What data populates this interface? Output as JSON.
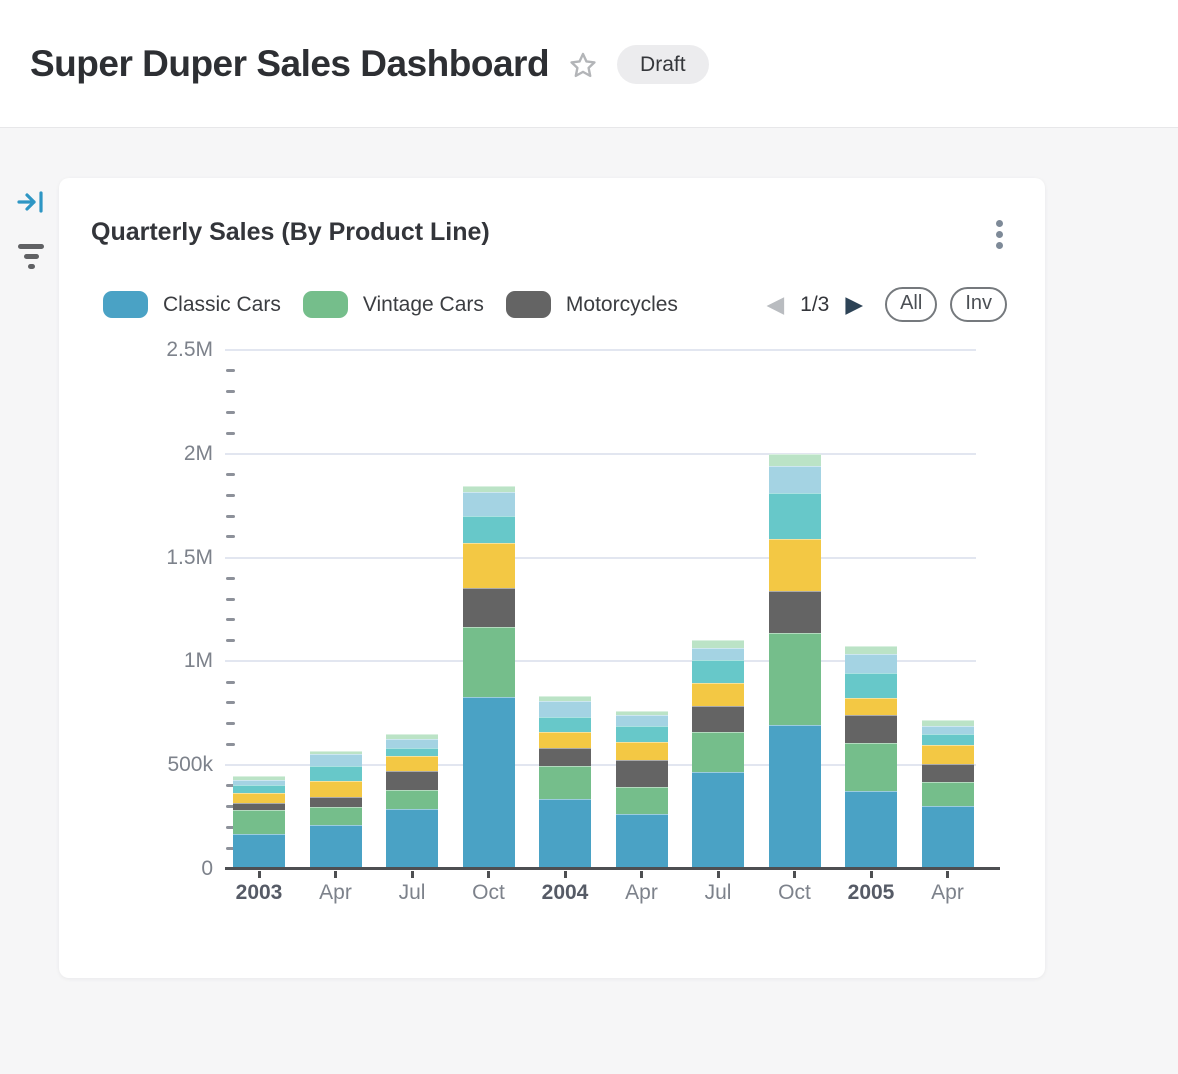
{
  "header": {
    "title": "Super Duper Sales Dashboard",
    "status_badge": "Draft"
  },
  "card": {
    "title": "Quarterly Sales (By Product Line)",
    "legend": {
      "items": [
        {
          "label": "Classic Cars",
          "color": "#4AA2C5"
        },
        {
          "label": "Vintage Cars",
          "color": "#75BE8B"
        },
        {
          "label": "Motorcycles",
          "color": "#646464"
        }
      ],
      "page": "1/3",
      "prev_disabled": true,
      "next_disabled": false,
      "all_label": "All",
      "inv_label": "Inv"
    }
  },
  "chart_data": {
    "type": "bar",
    "stacked": true,
    "title": "Quarterly Sales (By Product Line)",
    "categories": [
      "2003",
      "Apr",
      "Jul",
      "Oct",
      "2004",
      "Apr",
      "Jul",
      "Oct",
      "2005",
      "Apr"
    ],
    "year_indices": [
      0,
      4,
      8
    ],
    "series": [
      {
        "name": "Classic Cars",
        "color": "#4AA2C5",
        "values": [
          170000,
          210000,
          287000,
          831000,
          338000,
          266000,
          469000,
          696000,
          377000,
          302000
        ]
      },
      {
        "name": "Vintage Cars",
        "color": "#75BE8B",
        "values": [
          115000,
          91000,
          96000,
          334000,
          159000,
          130000,
          190000,
          441000,
          231000,
          115000
        ]
      },
      {
        "name": "Motorcycles",
        "color": "#646464",
        "values": [
          32000,
          44000,
          88000,
          191000,
          87000,
          128000,
          124000,
          200000,
          132000,
          91000
        ]
      },
      {
        "name": "Unlabeled (yellow, legend page 2)",
        "color": "#F3C844",
        "values": [
          50000,
          80000,
          75000,
          215000,
          77000,
          87000,
          115000,
          255000,
          83000,
          88000
        ]
      },
      {
        "name": "Unlabeled (teal, legend page 2)",
        "color": "#67C8C9",
        "values": [
          40000,
          72000,
          37000,
          130000,
          70000,
          80000,
          108000,
          218000,
          123000,
          55000
        ]
      },
      {
        "name": "Unlabeled (light blue, legend page 2)",
        "color": "#A4D3E3",
        "values": [
          22000,
          56000,
          43000,
          113000,
          76000,
          52000,
          60000,
          130000,
          92000,
          40000
        ]
      },
      {
        "name": "Unlabeled (pale green, legend page 3)",
        "color": "#BBE3C6",
        "values": [
          21000,
          15000,
          26000,
          30000,
          27000,
          19000,
          35000,
          61000,
          35000,
          25000
        ]
      }
    ],
    "ylim": [
      0,
      2500000
    ],
    "y_ticks": [
      "0",
      "500k",
      "1M",
      "1.5M",
      "2M",
      "2.5M"
    ],
    "major_tick_step": 500000,
    "minor_tick_step": 100000,
    "grid": "horizontal",
    "legend_position": "top"
  }
}
